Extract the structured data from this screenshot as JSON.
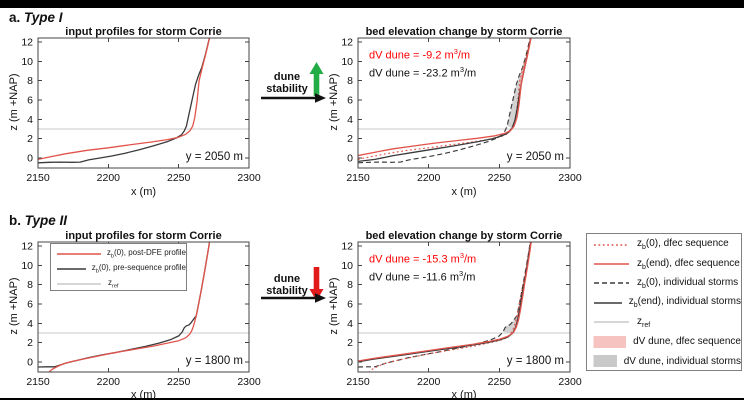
{
  "headers": {
    "a": {
      "prefix": "a.",
      "title": "Type I"
    },
    "b": {
      "prefix": "b.",
      "title": "Type II"
    }
  },
  "flow": {
    "a": {
      "line1": "dune",
      "line2": "stability",
      "arrow": "up"
    },
    "b": {
      "line1": "dune",
      "line2": "stability",
      "arrow": "down"
    }
  },
  "colors": {
    "red_line": "#e2544b",
    "black_line": "#3a3a3a",
    "gray_line": "#c9c9c9",
    "pink_fill": "rgba(244,154,148,0.5)",
    "gray_fill": "rgba(130,130,130,0.35)",
    "pink_swatch": "#f6c3c0",
    "gray_swatch": "#c9c9c9",
    "ann_red": "#ff0000",
    "green_arrow": "#22ac46",
    "red_arrow": "#e11b1b",
    "axis": "#444444"
  },
  "chart_data": {
    "type": "line",
    "xlabel": "x (m)",
    "ylabel": "z (m +NAP)",
    "xlim": [
      2150,
      2300
    ],
    "ylim": [
      -1,
      12.4
    ],
    "x_ticks": [
      2150,
      2200,
      2250,
      2300
    ],
    "y_ticks": [
      0,
      2,
      4,
      6,
      8,
      10,
      12
    ],
    "zref": 3,
    "series": {
      "red_a0": [
        [
          2150,
          -0.15
        ],
        [
          2158,
          0.1
        ],
        [
          2170,
          0.45
        ],
        [
          2185,
          0.8
        ],
        [
          2200,
          1.05
        ],
        [
          2215,
          1.35
        ],
        [
          2230,
          1.65
        ],
        [
          2242,
          1.9
        ],
        [
          2250,
          2.15
        ],
        [
          2255,
          2.45
        ],
        [
          2258,
          2.8
        ],
        [
          2260,
          3.3
        ],
        [
          2261.5,
          4.2
        ],
        [
          2263,
          5.8
        ],
        [
          2264.5,
          8.0
        ],
        [
          2266.5,
          9.2
        ],
        [
          2269,
          10.6
        ],
        [
          2271,
          11.8
        ],
        [
          2272,
          12.5
        ]
      ],
      "black_a0": [
        [
          2150,
          -0.5
        ],
        [
          2158,
          -0.45
        ],
        [
          2166,
          -0.42
        ],
        [
          2174,
          -0.45
        ],
        [
          2180,
          -0.42
        ],
        [
          2186,
          -0.2
        ],
        [
          2194,
          0.0
        ],
        [
          2202,
          0.2
        ],
        [
          2212,
          0.5
        ],
        [
          2222,
          0.85
        ],
        [
          2232,
          1.25
        ],
        [
          2242,
          1.7
        ],
        [
          2248,
          2.05
        ],
        [
          2252,
          2.4
        ],
        [
          2254,
          2.8
        ],
        [
          2255.5,
          3.3
        ],
        [
          2257,
          4.3
        ],
        [
          2258.5,
          5.3
        ],
        [
          2260,
          6.3
        ],
        [
          2262,
          7.6
        ],
        [
          2264,
          8.5
        ],
        [
          2266.5,
          9.4
        ],
        [
          2269,
          10.7
        ],
        [
          2271,
          11.9
        ],
        [
          2272,
          12.5
        ]
      ],
      "red_aend": [
        [
          2150,
          0.25
        ],
        [
          2162,
          0.6
        ],
        [
          2175,
          0.95
        ],
        [
          2190,
          1.25
        ],
        [
          2205,
          1.55
        ],
        [
          2220,
          1.8
        ],
        [
          2235,
          2.05
        ],
        [
          2247,
          2.3
        ],
        [
          2254,
          2.55
        ],
        [
          2258,
          2.85
        ],
        [
          2260.5,
          3.3
        ],
        [
          2262.5,
          4.2
        ],
        [
          2264,
          5.6
        ],
        [
          2265.5,
          7.6
        ],
        [
          2267,
          8.8
        ],
        [
          2269.5,
          10.3
        ],
        [
          2271.5,
          11.7
        ],
        [
          2272.5,
          12.5
        ]
      ],
      "black_aend": [
        [
          2150,
          -0.35
        ],
        [
          2162,
          -0.15
        ],
        [
          2175,
          0.25
        ],
        [
          2190,
          0.6
        ],
        [
          2205,
          0.95
        ],
        [
          2220,
          1.3
        ],
        [
          2235,
          1.7
        ],
        [
          2245,
          2.0
        ],
        [
          2252,
          2.3
        ],
        [
          2256,
          2.6
        ],
        [
          2259,
          3.1
        ],
        [
          2261,
          3.9
        ],
        [
          2262.5,
          5.0
        ],
        [
          2264,
          6.4
        ],
        [
          2266,
          8.0
        ],
        [
          2268,
          9.4
        ],
        [
          2270,
          10.8
        ],
        [
          2271.8,
          12.1
        ],
        [
          2272.5,
          12.5
        ]
      ],
      "red_b0": [
        [
          2157.5,
          -1.1
        ],
        [
          2160,
          -0.75
        ],
        [
          2164,
          -0.45
        ],
        [
          2168,
          -0.2
        ],
        [
          2174,
          0.05
        ],
        [
          2182,
          0.3
        ],
        [
          2192,
          0.6
        ],
        [
          2202,
          0.9
        ],
        [
          2212,
          1.15
        ],
        [
          2222,
          1.4
        ],
        [
          2232,
          1.65
        ],
        [
          2242,
          1.95
        ],
        [
          2250,
          2.2
        ],
        [
          2255,
          2.5
        ],
        [
          2258,
          2.9
        ],
        [
          2259.5,
          3.3
        ],
        [
          2260.5,
          3.7
        ],
        [
          2261.5,
          4.2
        ],
        [
          2262.5,
          4.8
        ],
        [
          2264,
          5.9
        ],
        [
          2266,
          7.4
        ],
        [
          2268,
          9.0
        ],
        [
          2270,
          10.7
        ],
        [
          2271.5,
          12.0
        ],
        [
          2272,
          12.5
        ]
      ],
      "black_b0": [
        [
          2150,
          -0.52
        ],
        [
          2156,
          -0.5
        ],
        [
          2162,
          -0.5
        ],
        [
          2166,
          -0.3
        ],
        [
          2170,
          -0.1
        ],
        [
          2176,
          0.1
        ],
        [
          2186,
          0.45
        ],
        [
          2196,
          0.75
        ],
        [
          2206,
          1.0
        ],
        [
          2216,
          1.3
        ],
        [
          2226,
          1.6
        ],
        [
          2236,
          1.95
        ],
        [
          2244,
          2.3
        ],
        [
          2250,
          2.7
        ],
        [
          2252.5,
          3.1
        ],
        [
          2254,
          3.55
        ],
        [
          2255.5,
          3.75
        ],
        [
          2257.5,
          3.85
        ],
        [
          2259,
          4.1
        ],
        [
          2260.5,
          4.4
        ],
        [
          2262.5,
          4.8
        ],
        [
          2264,
          5.9
        ],
        [
          2266,
          7.4
        ],
        [
          2268,
          9.0
        ],
        [
          2270,
          10.7
        ],
        [
          2271.5,
          12.0
        ],
        [
          2272,
          12.5
        ]
      ],
      "red_bend": [
        [
          2150,
          0.1
        ],
        [
          2160,
          0.35
        ],
        [
          2172,
          0.6
        ],
        [
          2184,
          0.85
        ],
        [
          2196,
          1.1
        ],
        [
          2208,
          1.35
        ],
        [
          2220,
          1.6
        ],
        [
          2232,
          1.85
        ],
        [
          2242,
          2.1
        ],
        [
          2250,
          2.35
        ],
        [
          2256,
          2.65
        ],
        [
          2260,
          3.05
        ],
        [
          2262,
          3.6
        ],
        [
          2263.5,
          4.3
        ],
        [
          2265,
          5.4
        ],
        [
          2266.5,
          6.8
        ],
        [
          2268,
          8.2
        ],
        [
          2270,
          9.9
        ],
        [
          2271.8,
          11.6
        ],
        [
          2272.6,
          12.5
        ]
      ],
      "black_bend": [
        [
          2150,
          0.02
        ],
        [
          2160,
          0.27
        ],
        [
          2172,
          0.52
        ],
        [
          2184,
          0.77
        ],
        [
          2196,
          1.02
        ],
        [
          2208,
          1.27
        ],
        [
          2220,
          1.52
        ],
        [
          2232,
          1.77
        ],
        [
          2242,
          2.02
        ],
        [
          2250,
          2.28
        ],
        [
          2256,
          2.58
        ],
        [
          2259.5,
          3.0
        ],
        [
          2261.5,
          3.55
        ],
        [
          2263,
          4.4
        ],
        [
          2264.5,
          5.5
        ],
        [
          2266,
          6.9
        ],
        [
          2267.5,
          8.1
        ],
        [
          2269.5,
          9.8
        ],
        [
          2271.2,
          11.4
        ],
        [
          2272.4,
          12.5
        ]
      ]
    },
    "panels": {
      "a_left": {
        "title": "input profiles for storm Corrie",
        "location": "y = 2050 m",
        "curves": [
          {
            "s": "black_a0",
            "color": "black",
            "dash": "solid"
          },
          {
            "s": "red_a0",
            "color": "red",
            "dash": "solid"
          }
        ],
        "patches": []
      },
      "a_right": {
        "title": "bed elevation change by storm Corrie",
        "location": "y = 2050 m",
        "dv_red": {
          "pre": "dV dune = -9.2 m",
          "sup": "3",
          "post": "/m"
        },
        "dv_black": {
          "pre": "dV dune = -23.2 m",
          "sup": "3",
          "post": "/m"
        },
        "patches": [
          {
            "a": "black_a0",
            "b": "black_aend",
            "fill": "gray"
          },
          {
            "a": "red_a0",
            "b": "red_aend",
            "fill": "pink"
          }
        ],
        "curves": [
          {
            "s": "black_a0",
            "color": "black",
            "dash": "dashed"
          },
          {
            "s": "red_a0",
            "color": "red",
            "dash": "dotted"
          },
          {
            "s": "black_aend",
            "color": "black",
            "dash": "solid"
          },
          {
            "s": "red_aend",
            "color": "red",
            "dash": "solid"
          }
        ]
      },
      "b_left": {
        "title": "input profiles for storm Corrie",
        "location": "y = 1800 m",
        "curves": [
          {
            "s": "black_b0",
            "color": "black",
            "dash": "solid"
          },
          {
            "s": "red_b0",
            "color": "red",
            "dash": "solid"
          }
        ],
        "patches": []
      },
      "b_right": {
        "title": "bed elevation change by storm Corrie",
        "location": "y = 1800 m",
        "dv_red": {
          "pre": "dV dune = -15.3 m",
          "sup": "3",
          "post": "/m"
        },
        "dv_black": {
          "pre": "dV dune = -11.6 m",
          "sup": "3",
          "post": "/m"
        },
        "patches": [
          {
            "a": "black_b0",
            "b": "black_bend",
            "fill": "gray"
          },
          {
            "a": "red_b0",
            "b": "red_bend",
            "fill": "pink"
          }
        ],
        "curves": [
          {
            "s": "black_b0",
            "color": "black",
            "dash": "dashed"
          },
          {
            "s": "red_b0",
            "color": "red",
            "dash": "dotted"
          },
          {
            "s": "black_bend",
            "color": "black",
            "dash": "solid"
          },
          {
            "s": "red_bend",
            "color": "red",
            "dash": "solid"
          }
        ]
      }
    }
  },
  "legend_outer": {
    "items": [
      {
        "swatch": "line",
        "color": "red",
        "dash": "dotted",
        "label": {
          "pre": "z",
          "sub": "b",
          "post": "(0), dfec sequence"
        }
      },
      {
        "swatch": "line",
        "color": "red",
        "dash": "solid",
        "label": {
          "pre": "z",
          "sub": "b",
          "post": "(end), dfec sequence"
        }
      },
      {
        "swatch": "line",
        "color": "black",
        "dash": "dashed",
        "label": {
          "pre": "z",
          "sub": "b",
          "post": "(0), individual storms"
        }
      },
      {
        "swatch": "line",
        "color": "black",
        "dash": "solid",
        "label": {
          "pre": "z",
          "sub": "b",
          "post": "(end), individual storms"
        }
      },
      {
        "swatch": "line",
        "color": "gray",
        "dash": "solid",
        "label": {
          "pre": "z",
          "sub": "ref",
          "post": ""
        }
      },
      {
        "swatch": "patch",
        "color": "pink",
        "label": {
          "pre": "dV dune, dfec sequence"
        }
      },
      {
        "swatch": "patch",
        "color": "grayfill",
        "label": {
          "pre": "dV dune, individual storms"
        }
      }
    ]
  },
  "legend_inner": {
    "items": [
      {
        "swatch": "line",
        "color": "red",
        "dash": "solid",
        "label": {
          "pre": "z",
          "sub": "b",
          "post": "(0), post-DFE profile"
        }
      },
      {
        "swatch": "line",
        "color": "black",
        "dash": "solid",
        "label": {
          "pre": "z",
          "sub": "b",
          "post": "(0), pre-sequence profile"
        }
      },
      {
        "swatch": "line",
        "color": "gray",
        "dash": "solid",
        "label": {
          "pre": "z",
          "sub": "ref",
          "post": ""
        }
      }
    ]
  }
}
